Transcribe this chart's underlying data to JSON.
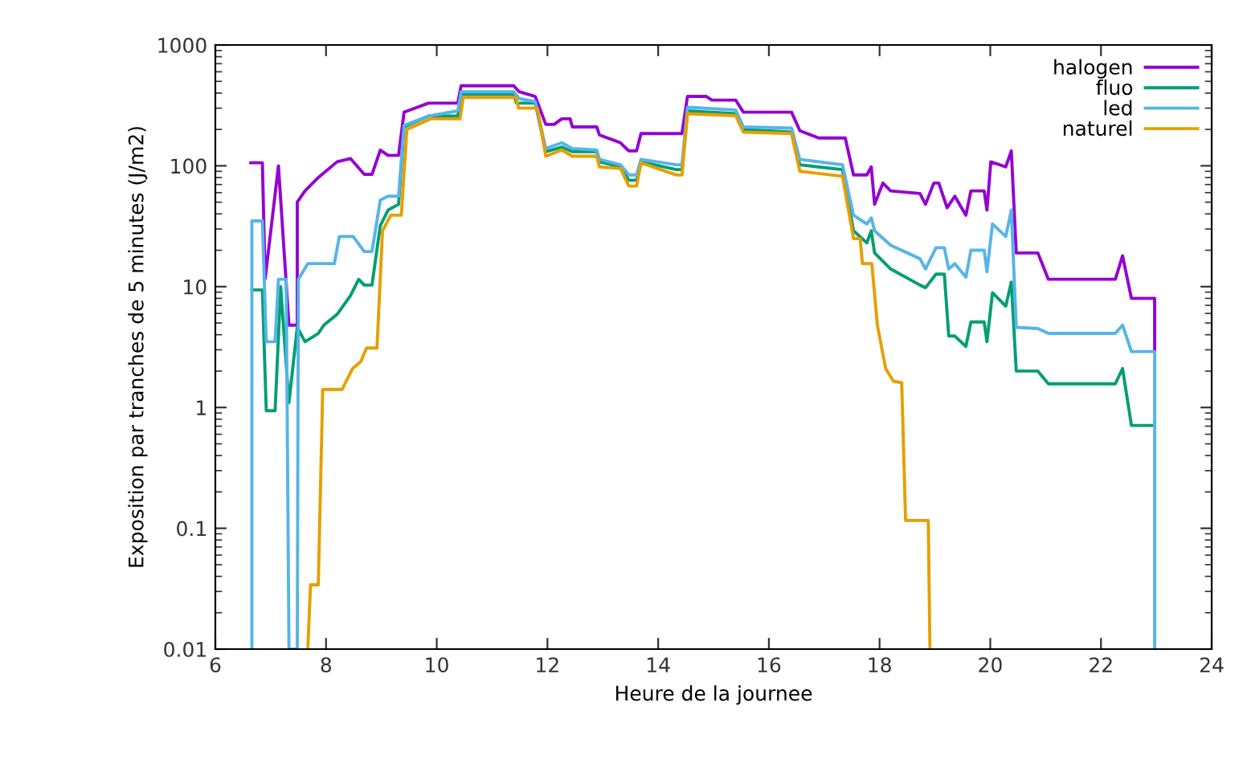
{
  "chart_data": {
    "type": "line",
    "xlabel": "Heure de la journee",
    "ylabel": "Exposition par tranches de 5 minutes (J/m2)",
    "log": "y",
    "grid": false,
    "legend": "top right",
    "marker": "none",
    "line_style": "solid",
    "xlim": [
      6,
      24
    ],
    "xticks": [
      6,
      8,
      10,
      12,
      14,
      16,
      18,
      20,
      22,
      24
    ],
    "ylim": [
      0.01,
      1000
    ],
    "yticks": [
      0.01,
      0.1,
      1,
      10,
      100,
      1000
    ],
    "series": [
      {
        "name": "halogen",
        "color": "#9400d3",
        "x": [
          6.64,
          6.85,
          6.9,
          7.14,
          7.33,
          7.48,
          7.48,
          7.62,
          7.86,
          8.2,
          8.44,
          8.69,
          8.83,
          8.98,
          9.12,
          9.31,
          9.41,
          9.85,
          10.38,
          10.44,
          11.39,
          11.49,
          11.78,
          11.97,
          12.12,
          12.26,
          12.41,
          12.45,
          12.89,
          12.94,
          13.32,
          13.47,
          13.61,
          13.69,
          14.43,
          14.53,
          14.87,
          14.97,
          15.4,
          15.54,
          16.41,
          16.56,
          16.9,
          17.38,
          17.53,
          17.77,
          17.85,
          17.91,
          18.06,
          18.2,
          18.73,
          18.83,
          18.98,
          19.07,
          19.22,
          19.36,
          19.56,
          19.65,
          19.89,
          19.94,
          20.01,
          20.28,
          20.38,
          20.47,
          20.86,
          21.05,
          22.26,
          22.39,
          22.55,
          22.97,
          22.97
        ],
        "values": [
          106,
          106,
          11.6,
          100,
          4.8,
          4.8,
          50,
          62,
          80,
          108,
          115,
          85,
          85,
          135,
          122,
          122,
          278,
          330,
          330,
          460,
          460,
          410,
          375,
          220,
          220,
          245,
          245,
          210,
          210,
          180,
          155,
          133,
          133,
          185,
          185,
          375,
          375,
          350,
          350,
          278,
          278,
          195,
          170,
          170,
          84,
          84,
          98,
          48,
          72,
          62,
          59,
          48,
          72,
          72,
          45,
          56,
          39,
          62,
          62,
          43,
          108,
          98,
          133,
          19,
          19,
          11.5,
          11.5,
          18,
          8,
          8,
          3
        ]
      },
      {
        "name": "fluo",
        "color": "#009e73",
        "x": [
          6.66,
          6.85,
          6.92,
          7.08,
          7.18,
          7.33,
          7.48,
          7.62,
          7.86,
          7.96,
          8.2,
          8.44,
          8.59,
          8.69,
          8.83,
          8.98,
          9.12,
          9.31,
          9.41,
          9.85,
          10.38,
          10.44,
          11.39,
          11.44,
          11.78,
          11.97,
          12.26,
          12.45,
          12.89,
          12.94,
          13.32,
          13.47,
          13.61,
          13.69,
          14.33,
          14.43,
          14.53,
          15.4,
          15.54,
          16.41,
          16.56,
          17.33,
          17.53,
          17.77,
          17.85,
          17.91,
          18.2,
          18.73,
          18.83,
          19.02,
          19.17,
          19.25,
          19.36,
          19.56,
          19.65,
          19.89,
          19.94,
          20.04,
          20.28,
          20.38,
          20.47,
          20.86,
          21.05,
          22.26,
          22.39,
          22.55,
          22.94
        ],
        "values": [
          9.4,
          9.4,
          0.94,
          0.94,
          10,
          1.1,
          4.6,
          3.5,
          4.1,
          4.8,
          5.9,
          8.4,
          11.5,
          10.3,
          10.3,
          32,
          43,
          48,
          210,
          258,
          258,
          390,
          390,
          330,
          330,
          131,
          143,
          131,
          131,
          108,
          98,
          76,
          76,
          108,
          93,
          93,
          285,
          270,
          200,
          190,
          102,
          93,
          29,
          23,
          29,
          19,
          14,
          10.3,
          9.8,
          12.7,
          12.7,
          3.9,
          3.9,
          3.2,
          5.1,
          5.1,
          3.5,
          8.9,
          6.9,
          10.9,
          2,
          2,
          1.57,
          1.57,
          2.1,
          0.71,
          0.71
        ]
      },
      {
        "name": "led",
        "color": "#56b4e9",
        "x": [
          6.66,
          6.66,
          6.85,
          6.92,
          7.08,
          7.14,
          7.28,
          7.33,
          7.48,
          7.5,
          7.67,
          7.86,
          8.15,
          8.24,
          8.49,
          8.69,
          8.83,
          8.98,
          9.12,
          9.31,
          9.41,
          9.85,
          10.38,
          10.44,
          11.39,
          11.49,
          11.78,
          11.97,
          12.26,
          12.45,
          12.89,
          12.94,
          13.32,
          13.47,
          13.61,
          13.69,
          14.33,
          14.43,
          14.53,
          15.4,
          15.54,
          16.41,
          16.56,
          17.33,
          17.53,
          17.77,
          17.85,
          17.91,
          18.2,
          18.73,
          18.83,
          19.02,
          19.17,
          19.25,
          19.36,
          19.56,
          19.65,
          19.89,
          19.94,
          20.04,
          20.28,
          20.38,
          20.47,
          20.86,
          21.05,
          22.26,
          22.39,
          22.55,
          22.97,
          22.97
        ],
        "values": [
          0.01,
          35,
          35,
          3.5,
          3.5,
          11.5,
          11.5,
          0.01,
          0.01,
          11.5,
          15.5,
          15.5,
          15.5,
          26,
          26,
          19.5,
          19.5,
          52,
          56,
          56,
          216,
          258,
          285,
          410,
          410,
          360,
          340,
          139,
          155,
          139,
          135,
          113,
          102,
          84,
          84,
          113,
          102,
          102,
          305,
          290,
          210,
          205,
          113,
          102,
          39,
          33,
          37,
          29,
          22,
          17,
          14,
          21,
          21,
          14,
          15.5,
          12,
          20,
          20,
          13.3,
          33,
          26,
          43,
          4.6,
          4.5,
          4.1,
          4.1,
          4.8,
          2.9,
          2.9,
          0.01
        ]
      },
      {
        "name": "naturel",
        "color": "#e69f00",
        "x": [
          7.67,
          7.72,
          7.86,
          7.94,
          8.29,
          8.48,
          8.63,
          8.73,
          8.92,
          9.02,
          9.17,
          9.36,
          9.46,
          9.89,
          10.42,
          10.48,
          11.43,
          11.48,
          11.82,
          11.97,
          12.26,
          12.45,
          12.89,
          12.94,
          13.32,
          13.47,
          13.61,
          13.69,
          14.33,
          14.43,
          14.53,
          15.4,
          15.54,
          16.41,
          16.56,
          17.33,
          17.53,
          17.65,
          17.69,
          17.86,
          17.96,
          18.11,
          18.25,
          18.4,
          18.47,
          18.88,
          18.91
        ],
        "values": [
          0.01,
          0.034,
          0.034,
          1.41,
          1.41,
          2.1,
          2.4,
          3.1,
          3.1,
          29,
          39,
          39,
          200,
          245,
          245,
          368,
          368,
          300,
          300,
          120,
          135,
          120,
          120,
          98,
          95,
          68,
          68,
          106,
          84,
          84,
          270,
          260,
          190,
          185,
          90,
          82,
          25,
          25,
          15.5,
          15.5,
          4.8,
          2.1,
          1.65,
          1.6,
          0.116,
          0.116,
          0.01
        ]
      }
    ]
  }
}
